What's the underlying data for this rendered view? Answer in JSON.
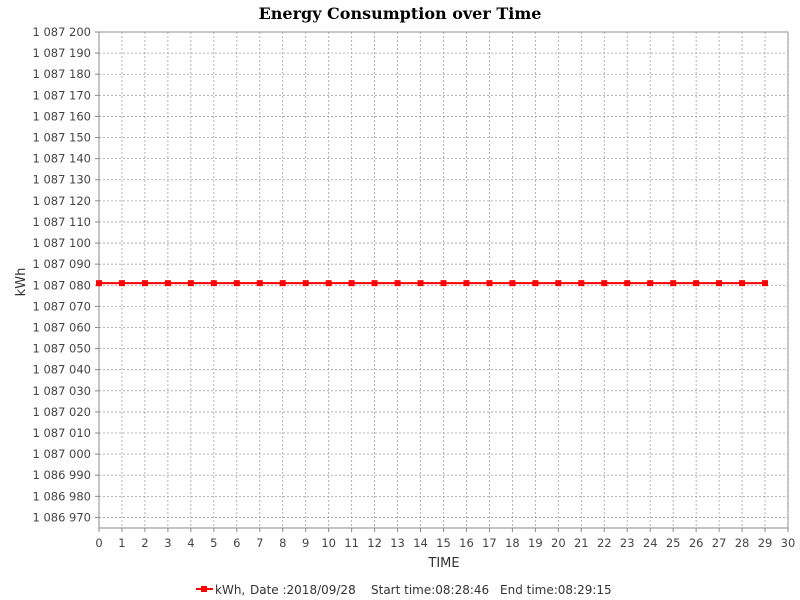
{
  "chart_data": {
    "type": "line",
    "title": "Energy Consumption over Time",
    "xlabel": "TIME",
    "ylabel": "kWh",
    "xlim": [
      0,
      30
    ],
    "ylim": [
      1086965,
      1087200
    ],
    "x_ticks": [
      0,
      1,
      2,
      3,
      4,
      5,
      6,
      7,
      8,
      9,
      10,
      11,
      12,
      13,
      14,
      15,
      16,
      17,
      18,
      19,
      20,
      21,
      22,
      23,
      24,
      25,
      26,
      27,
      28,
      29,
      30
    ],
    "y_ticks": [
      1086970,
      1086980,
      1086990,
      1087000,
      1087010,
      1087020,
      1087030,
      1087040,
      1087050,
      1087060,
      1087070,
      1087080,
      1087090,
      1087100,
      1087110,
      1087120,
      1087130,
      1087140,
      1087150,
      1087160,
      1087170,
      1087180,
      1087190,
      1087200
    ],
    "y_tick_labels": [
      "1 086 970",
      "1 086 980",
      "1 086 990",
      "1 087 000",
      "1 087 010",
      "1 087 020",
      "1 087 030",
      "1 087 040",
      "1 087 050",
      "1 087 060",
      "1 087 070",
      "1 087 080",
      "1 087 090",
      "1 087 100",
      "1 087 110",
      "1 087 120",
      "1 087 130",
      "1 087 140",
      "1 087 150",
      "1 087 160",
      "1 087 170",
      "1 087 180",
      "1 087 190",
      "1 087 200"
    ],
    "grid": true,
    "legend_position": "bottom",
    "series": [
      {
        "name": "kWh",
        "color": "#ff0000",
        "marker": "square",
        "x": [
          0,
          1,
          2,
          3,
          4,
          5,
          6,
          7,
          8,
          9,
          10,
          11,
          12,
          13,
          14,
          15,
          16,
          17,
          18,
          19,
          20,
          21,
          22,
          23,
          24,
          25,
          26,
          27,
          28,
          29
        ],
        "y": [
          1087081,
          1087081,
          1087081,
          1087081,
          1087081,
          1087081,
          1087081,
          1087081,
          1087081,
          1087081,
          1087081,
          1087081,
          1087081,
          1087081,
          1087081,
          1087081,
          1087081,
          1087081,
          1087081,
          1087081,
          1087081,
          1087081,
          1087081,
          1087081,
          1087081,
          1087081,
          1087081,
          1087081,
          1087081,
          1087081
        ]
      }
    ],
    "legend": {
      "series_label": "kWh,",
      "date_text": "Date :2018/09/28",
      "start_text": "Start time:08:28:46",
      "end_text": "End time:08:29:15"
    }
  }
}
